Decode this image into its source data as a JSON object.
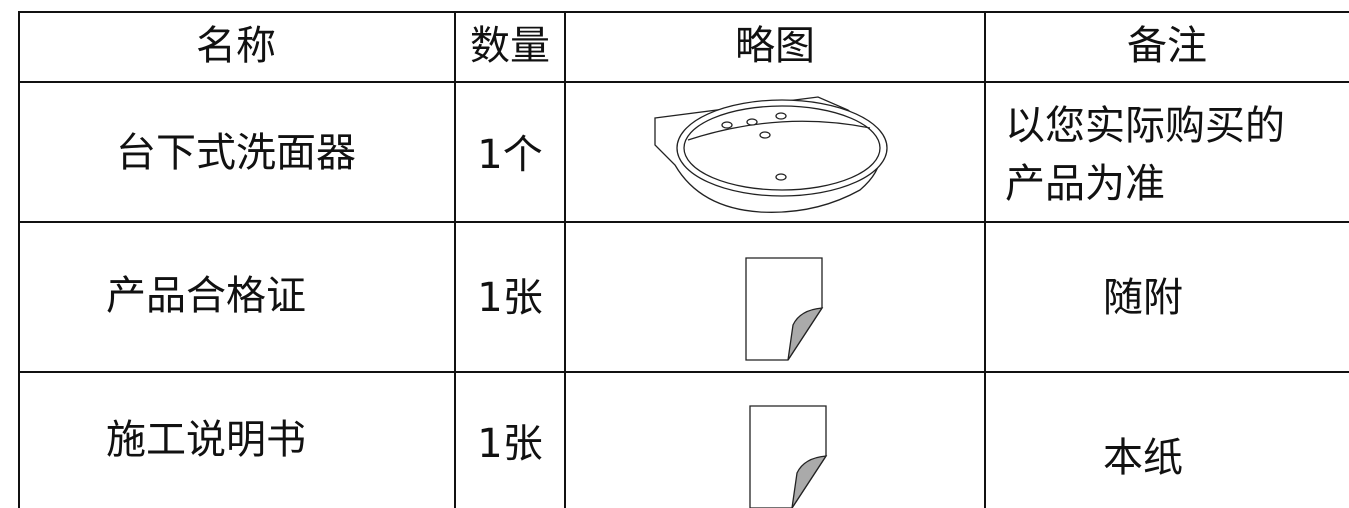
{
  "table": {
    "header": [
      "名称",
      "数量",
      "略图",
      "备注"
    ],
    "rows": [
      {
        "name": "台下式洗面器",
        "quantity": "1个",
        "notes": [
          "以您实际购买的",
          "产品为准"
        ]
      },
      {
        "name": "产品合格证",
        "quantity": "1张",
        "notes": [
          "随附"
        ]
      },
      {
        "name": "施工说明书",
        "quantity": "1张",
        "notes": [
          "本纸"
        ]
      }
    ]
  }
}
